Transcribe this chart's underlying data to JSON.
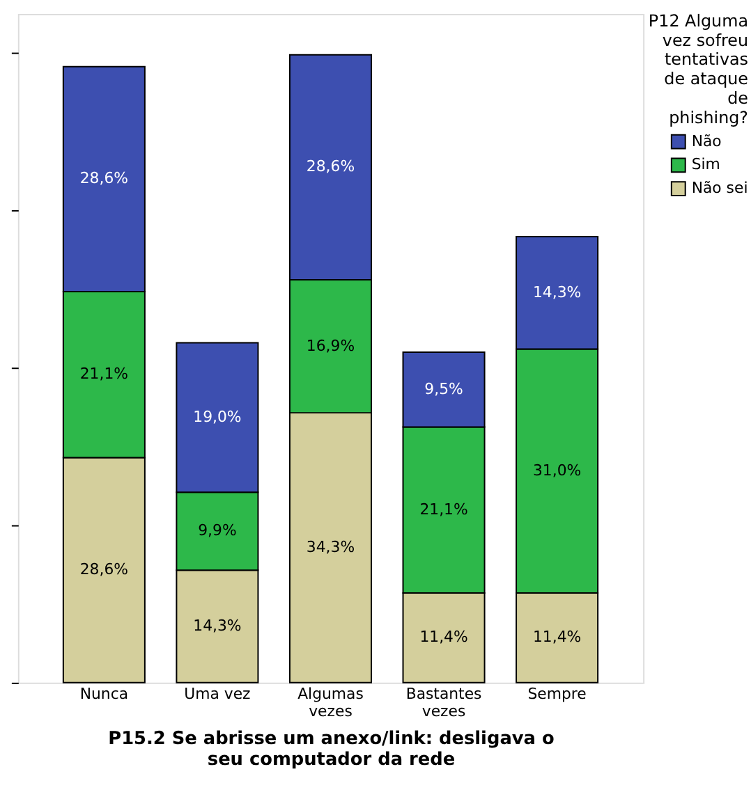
{
  "chart_data": {
    "type": "bar",
    "stacked": true,
    "categories": [
      "Nunca",
      "Uma vez",
      "Algumas vezes",
      "Bastantes vezes",
      "Sempre"
    ],
    "xlabel": "P15.2 Se abrisse um anexo/link: desligava o seu computador da rede",
    "legend_title": "P12 Alguma vez sofreu tentativas de ataque de phishing?",
    "legend": "top right",
    "ylim": [
      0,
      85
    ],
    "yticks": [
      {
        "value": 0,
        "label": null
      },
      {
        "value": 20,
        "label": null
      },
      {
        "value": 40,
        "label": null
      },
      {
        "value": 60,
        "label": null
      },
      {
        "value": 80,
        "label": null
      }
    ],
    "grid": false,
    "series": [
      {
        "name": "Não sei",
        "color": "#d4cf9c",
        "values": [
          28.6,
          14.3,
          34.3,
          11.4,
          11.4
        ],
        "value_labels": [
          "28,6%",
          "14,3%",
          "34,3%",
          "11,4%",
          "11,4%"
        ]
      },
      {
        "name": "Sim",
        "color": "#2db84a",
        "values": [
          21.1,
          9.9,
          16.9,
          21.1,
          31.0
        ],
        "value_labels": [
          "21,1%",
          "9,9%",
          "16,9%",
          "21,1%",
          "31,0%"
        ]
      },
      {
        "name": "Não",
        "color": "#3d4fb0",
        "values": [
          28.6,
          19.0,
          28.6,
          9.5,
          14.3
        ],
        "value_labels": [
          "28,6%",
          "19,0%",
          "28,6%",
          "9,5%",
          "14,3%"
        ]
      }
    ]
  }
}
